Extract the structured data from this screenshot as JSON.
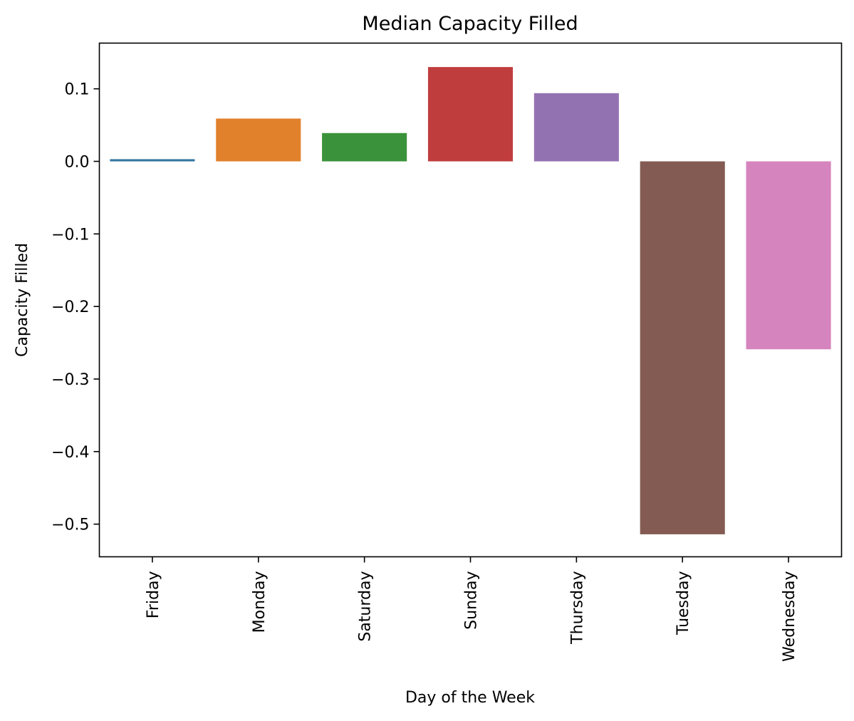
{
  "chart_data": {
    "type": "bar",
    "title": "Median Capacity Filled",
    "xlabel": "Day of the Week",
    "ylabel": "Capacity Filled",
    "categories": [
      "Friday",
      "Monday",
      "Saturday",
      "Sunday",
      "Thursday",
      "Tuesday",
      "Wednesday"
    ],
    "values": [
      0.003,
      0.059,
      0.039,
      0.13,
      0.094,
      -0.514,
      -0.259
    ],
    "colors": [
      "#3274a1",
      "#e1812c",
      "#3a923a",
      "#c03d3e",
      "#9372b2",
      "#845b53",
      "#d684bd"
    ],
    "ylim": [
      -0.545,
      0.163
    ],
    "yticks": [
      0.1,
      0.0,
      -0.1,
      -0.2,
      -0.3,
      -0.4,
      -0.5
    ],
    "ytick_labels": [
      "0.1",
      "0.0",
      "−0.1",
      "−0.2",
      "−0.3",
      "−0.4",
      "−0.5"
    ],
    "grid": false,
    "legend": "none"
  }
}
